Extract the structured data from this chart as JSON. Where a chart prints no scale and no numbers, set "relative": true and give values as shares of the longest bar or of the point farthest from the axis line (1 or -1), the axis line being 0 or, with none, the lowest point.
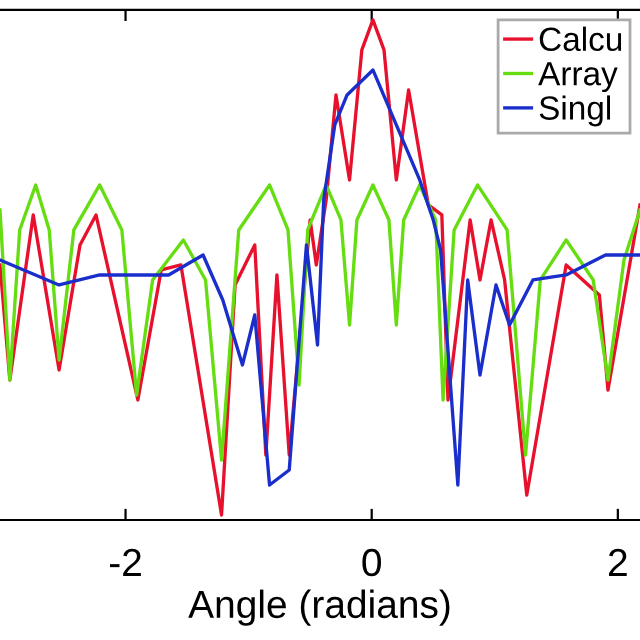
{
  "chart_data": {
    "type": "line",
    "xlabel": "Angle (radians)",
    "relative": true,
    "xlim": [
      -3.02,
      2.18
    ],
    "xticks": [
      -2,
      0,
      2
    ],
    "grid": false,
    "legend": "top right",
    "marker": "none",
    "line_style": "solid",
    "series": [
      {
        "name": "Calcu",
        "color": "#e8112d",
        "x": [
          -3.02,
          -2.94,
          -2.75,
          -2.54,
          -2.37,
          -2.24,
          -1.9,
          -1.71,
          -1.55,
          -1.22,
          -1.11,
          -0.95,
          -0.86,
          -0.77,
          -0.67,
          -0.5,
          -0.45,
          -0.37,
          -0.29,
          -0.18,
          -0.08,
          0.01,
          0.1,
          0.2,
          0.3,
          0.46,
          0.57,
          0.62,
          0.8,
          0.88,
          0.97,
          1.08,
          1.26,
          1.58,
          1.85,
          1.92,
          2.18
        ],
        "values": [
          0.51,
          0.28,
          0.61,
          0.3,
          0.55,
          0.61,
          0.24,
          0.5,
          0.51,
          0.01,
          0.47,
          0.55,
          0.13,
          0.49,
          0.13,
          0.6,
          0.51,
          0.64,
          0.85,
          0.68,
          0.94,
          1.0,
          0.94,
          0.68,
          0.86,
          0.63,
          0.61,
          0.24,
          0.6,
          0.48,
          0.6,
          0.48,
          0.05,
          0.51,
          0.45,
          0.26,
          0.63
        ]
      },
      {
        "name": "Array",
        "color": "#66dd11",
        "x": [
          -3.02,
          -2.94,
          -2.86,
          -2.73,
          -2.62,
          -2.54,
          -2.42,
          -2.21,
          -2.03,
          -1.91,
          -1.78,
          -1.53,
          -1.35,
          -1.22,
          -1.08,
          -0.83,
          -0.68,
          -0.59,
          -0.52,
          -0.37,
          -0.25,
          -0.18,
          -0.12,
          0.01,
          0.14,
          0.2,
          0.26,
          0.39,
          0.52,
          0.58,
          0.67,
          0.86,
          1.1,
          1.25,
          1.37,
          1.58,
          1.8,
          1.92,
          2.05,
          2.18
        ],
        "values": [
          0.62,
          0.28,
          0.58,
          0.67,
          0.58,
          0.32,
          0.58,
          0.67,
          0.58,
          0.25,
          0.48,
          0.56,
          0.48,
          0.12,
          0.58,
          0.67,
          0.58,
          0.27,
          0.58,
          0.67,
          0.6,
          0.39,
          0.6,
          0.67,
          0.6,
          0.39,
          0.6,
          0.67,
          0.6,
          0.24,
          0.58,
          0.67,
          0.58,
          0.13,
          0.48,
          0.56,
          0.48,
          0.28,
          0.52,
          0.62
        ]
      },
      {
        "name": "Singl",
        "color": "#1a2ecc",
        "x": [
          -3.02,
          -2.54,
          -2.21,
          -1.91,
          -1.65,
          -1.37,
          -1.21,
          -1.05,
          -0.95,
          -0.83,
          -0.67,
          -0.53,
          -0.44,
          -0.39,
          -0.3,
          -0.2,
          0.01,
          0.2,
          0.39,
          0.5,
          0.56,
          0.7,
          0.78,
          0.88,
          1.01,
          1.12,
          1.31,
          1.58,
          1.9,
          2.18
        ],
        "values": [
          0.52,
          0.47,
          0.49,
          0.49,
          0.49,
          0.53,
          0.44,
          0.31,
          0.41,
          0.07,
          0.1,
          0.55,
          0.35,
          0.64,
          0.79,
          0.85,
          0.9,
          0.79,
          0.68,
          0.6,
          0.54,
          0.07,
          0.48,
          0.29,
          0.47,
          0.39,
          0.48,
          0.49,
          0.53,
          0.53
        ]
      }
    ]
  }
}
